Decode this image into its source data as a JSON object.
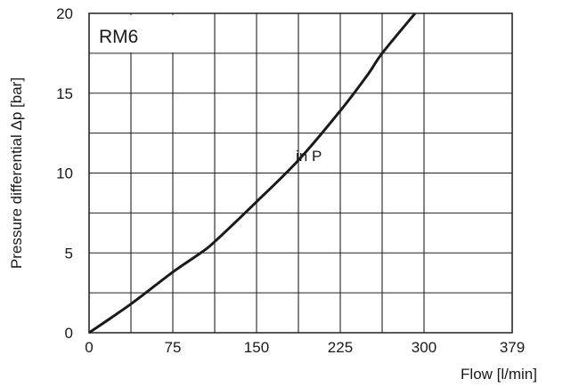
{
  "chart_data": {
    "type": "line",
    "box_label": "RM6",
    "xlabel": "Flow  [l/min]",
    "ylabel": "Pressure differential Δp [bar]",
    "xlim": [
      0,
      379
    ],
    "ylim": [
      0,
      20
    ],
    "x_ticks": [
      0,
      75,
      150,
      225,
      300,
      379
    ],
    "y_ticks": [
      0,
      5,
      10,
      15,
      20
    ],
    "x_grid": [
      0,
      37.5,
      75,
      112.5,
      150,
      187.5,
      225,
      262.5,
      300,
      379
    ],
    "y_grid": [
      0,
      2.5,
      5,
      7.5,
      10,
      12.5,
      15,
      17.5,
      20
    ],
    "grid": true,
    "series": [
      {
        "label": "in P",
        "x": [
          0,
          37.5,
          75,
          100,
          112.5,
          150,
          187.5,
          225,
          250,
          262.5,
          292
        ],
        "y": [
          0,
          1.8,
          3.8,
          5.0,
          5.7,
          8.2,
          10.8,
          13.9,
          16.2,
          17.5,
          20
        ]
      }
    ]
  }
}
